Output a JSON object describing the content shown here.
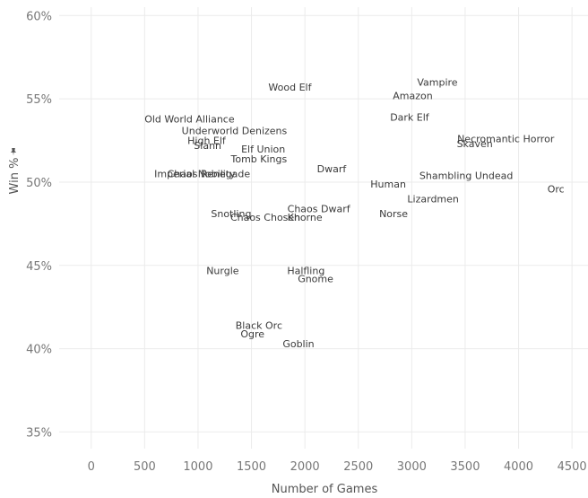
{
  "chart_data": {
    "type": "scatter",
    "xlabel": "Number of Games",
    "ylabel": "Win %",
    "ylabel_icon": "pin-icon",
    "xlim": [
      -300,
      4650
    ],
    "ylim": [
      34,
      60.5
    ],
    "x_ticks": [
      0,
      500,
      1000,
      1500,
      2000,
      2500,
      3000,
      3500,
      4000,
      4500
    ],
    "y_ticks": [
      35,
      40,
      45,
      50,
      55,
      60
    ],
    "y_tick_format": "percent",
    "grid": true,
    "marker": "text-label",
    "text_color": "#3a3a3a",
    "points": [
      {
        "label": "Vampire",
        "x": 3240,
        "y": 56.0
      },
      {
        "label": "Wood Elf",
        "x": 1860,
        "y": 55.7
      },
      {
        "label": "Amazon",
        "x": 3010,
        "y": 55.2
      },
      {
        "label": "Dark Elf",
        "x": 2980,
        "y": 53.9
      },
      {
        "label": "Old World Alliance",
        "x": 920,
        "y": 53.8
      },
      {
        "label": "Underworld Denizens",
        "x": 1340,
        "y": 53.1
      },
      {
        "label": "Necromantic Horror",
        "x": 3880,
        "y": 52.6
      },
      {
        "label": "High Elf",
        "x": 1080,
        "y": 52.5
      },
      {
        "label": "Skaven",
        "x": 3590,
        "y": 52.3
      },
      {
        "label": "Slann",
        "x": 1090,
        "y": 52.2
      },
      {
        "label": "Elf Union",
        "x": 1610,
        "y": 52.0
      },
      {
        "label": "Tomb Kings",
        "x": 1570,
        "y": 51.4
      },
      {
        "label": "Dwarf",
        "x": 2250,
        "y": 50.8
      },
      {
        "label": "Imperial Nobility",
        "x": 970,
        "y": 50.5
      },
      {
        "label": "Chaos Renegade",
        "x": 1100,
        "y": 50.5
      },
      {
        "label": "Shambling Undead",
        "x": 3510,
        "y": 50.4
      },
      {
        "label": "Human",
        "x": 2780,
        "y": 49.9
      },
      {
        "label": "Orc",
        "x": 4350,
        "y": 49.6
      },
      {
        "label": "Lizardmen",
        "x": 3200,
        "y": 49.0
      },
      {
        "label": "Chaos Dwarf",
        "x": 2130,
        "y": 48.4
      },
      {
        "label": "Snotling",
        "x": 1310,
        "y": 48.1
      },
      {
        "label": "Norse",
        "x": 2830,
        "y": 48.1
      },
      {
        "label": "Chaos Chosen",
        "x": 1630,
        "y": 47.9
      },
      {
        "label": "Khorne",
        "x": 2000,
        "y": 47.9
      },
      {
        "label": "Halfling",
        "x": 2010,
        "y": 44.7
      },
      {
        "label": "Nurgle",
        "x": 1230,
        "y": 44.7
      },
      {
        "label": "Gnome",
        "x": 2100,
        "y": 44.2
      },
      {
        "label": "Black Orc",
        "x": 1570,
        "y": 41.4
      },
      {
        "label": "Ogre",
        "x": 1510,
        "y": 40.9
      },
      {
        "label": "Goblin",
        "x": 1940,
        "y": 40.3
      }
    ]
  }
}
